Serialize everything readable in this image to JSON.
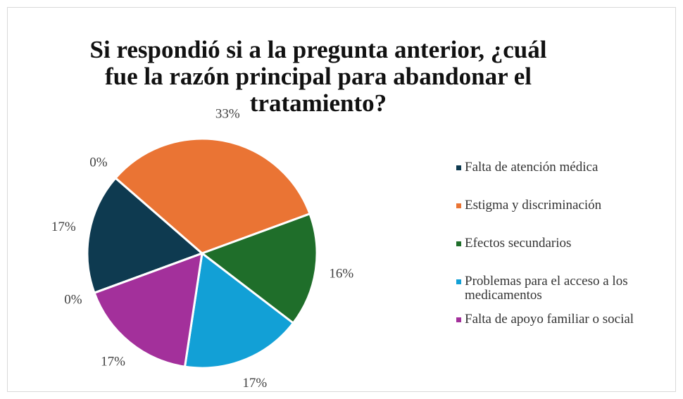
{
  "chart_data": {
    "type": "pie",
    "title": "Si respondió si a la pregunta anterior, ¿cuál fue la razón principal para abandonar el tratamiento?",
    "categories": [
      "Falta de atención médica",
      null,
      "Estigma y discriminación",
      "Efectos secundarios",
      "Problemas para el acceso a los medicamentos",
      "Falta de apoyo familiar o social",
      null
    ],
    "values": [
      17,
      0,
      33,
      16,
      17,
      17,
      0
    ],
    "value_labels": [
      "17%",
      "0%",
      "33%",
      "16%",
      "17%",
      "17%",
      "0%"
    ],
    "colors": [
      "#0e3a50",
      "#0e3a50",
      "#ea7434",
      "#1f6e2a",
      "#12a0d6",
      "#a3309b",
      "#a3309b"
    ],
    "legend": "right"
  }
}
